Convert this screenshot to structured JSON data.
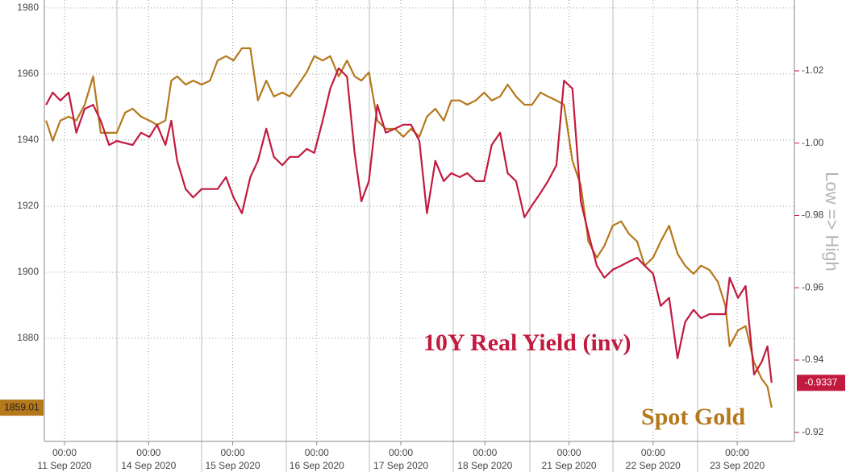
{
  "chart_data": {
    "type": "line",
    "x": [
      -0.22,
      -0.14,
      -0.05,
      0.05,
      0.14,
      0.24,
      0.34,
      0.43,
      0.53,
      0.62,
      0.72,
      0.81,
      0.91,
      1.01,
      1.1,
      1.2,
      1.27,
      1.34,
      1.44,
      1.53,
      1.63,
      1.73,
      1.82,
      1.92,
      2.01,
      2.11,
      2.21,
      2.3,
      2.4,
      2.49,
      2.59,
      2.68,
      2.78,
      2.88,
      2.97,
      3.07,
      3.16,
      3.26,
      3.36,
      3.45,
      3.53,
      3.62,
      3.72,
      3.82,
      3.93,
      4.03,
      4.12,
      4.22,
      4.31,
      4.41,
      4.51,
      4.6,
      4.7,
      4.79,
      4.89,
      4.99,
      5.08,
      5.18,
      5.27,
      5.37,
      5.47,
      5.56,
      5.66,
      5.75,
      5.85,
      5.94,
      6.04,
      6.14,
      6.23,
      6.33,
      6.42,
      6.52,
      6.62,
      6.71,
      6.81,
      6.9,
      7.0,
      7.09,
      7.19,
      7.29,
      7.38,
      7.48,
      7.57,
      7.67,
      7.77,
      7.86,
      7.91,
      8.01,
      8.1,
      8.2,
      8.29,
      8.36,
      8.41
    ],
    "series": [
      {
        "name": "Spot Gold",
        "color": "#b5781b",
        "values": [
          1945.9,
          1939.8,
          1945.9,
          1947.1,
          1945.9,
          1950.7,
          1959.3,
          1942.2,
          1942.2,
          1942.2,
          1948.3,
          1949.5,
          1947.1,
          1945.9,
          1944.6,
          1945.9,
          1958.0,
          1959.3,
          1956.8,
          1958.0,
          1956.8,
          1958.0,
          1964.1,
          1965.4,
          1964.1,
          1967.8,
          1967.8,
          1952.0,
          1958.0,
          1953.2,
          1954.4,
          1953.2,
          1956.8,
          1960.5,
          1965.4,
          1964.1,
          1965.4,
          1959.3,
          1964.1,
          1959.3,
          1958.0,
          1960.5,
          1945.9,
          1943.4,
          1943.4,
          1941.0,
          1943.4,
          1941.0,
          1947.1,
          1949.5,
          1945.9,
          1952.0,
          1952.0,
          1950.7,
          1952.0,
          1954.4,
          1952.0,
          1953.2,
          1956.8,
          1953.2,
          1950.7,
          1950.7,
          1954.4,
          1953.2,
          1952.0,
          1950.7,
          1933.7,
          1926.3,
          1909.3,
          1904.4,
          1908.0,
          1914.1,
          1915.4,
          1911.7,
          1909.3,
          1902.0,
          1904.4,
          1909.3,
          1914.1,
          1905.6,
          1902.0,
          1899.5,
          1902.0,
          1900.7,
          1897.1,
          1889.8,
          1877.6,
          1882.4,
          1883.7,
          1872.7,
          1867.8,
          1865.4,
          1859.01
        ]
      },
      {
        "name": "10Y Real Yield (inv)",
        "color": "#c21a3e",
        "axis": "y2",
        "values": [
          -1.0106,
          -1.014,
          -1.0118,
          -1.014,
          -1.0029,
          -1.0095,
          -1.0106,
          -1.0062,
          -0.9995,
          -1.0006,
          -1.0,
          -0.9995,
          -1.0029,
          -1.0017,
          -1.0051,
          -0.9995,
          -1.0062,
          -0.9951,
          -0.9873,
          -0.985,
          -0.9873,
          -0.9873,
          -0.9873,
          -0.9906,
          -0.985,
          -0.9806,
          -0.9906,
          -0.9951,
          -1.004,
          -0.9962,
          -0.9939,
          -0.9962,
          -0.9962,
          -0.9984,
          -0.9973,
          -1.0062,
          -1.0151,
          -1.0207,
          -1.0184,
          -0.9973,
          -0.9839,
          -0.9895,
          -1.0106,
          -1.0029,
          -1.004,
          -1.0051,
          -1.0051,
          -1.0006,
          -0.9806,
          -0.9951,
          -0.9895,
          -0.9917,
          -0.9906,
          -0.9917,
          -0.9895,
          -0.9895,
          -0.9995,
          -1.0029,
          -0.9917,
          -0.9895,
          -0.9795,
          -0.9828,
          -0.9862,
          -0.9895,
          -0.9939,
          -1.0173,
          -1.0151,
          -0.9839,
          -0.975,
          -0.9661,
          -0.9628,
          -0.965,
          -0.9661,
          -0.9672,
          -0.9683,
          -0.9661,
          -0.9639,
          -0.955,
          -0.9572,
          -0.9405,
          -0.9505,
          -0.9539,
          -0.9516,
          -0.9527,
          -0.9527,
          -0.9527,
          -0.9628,
          -0.9572,
          -0.9605,
          -0.936,
          -0.9394,
          -0.9438,
          -0.9337
        ]
      }
    ],
    "xlim": [
      -0.24,
      8.68
    ],
    "xticks": [
      {
        "value": 0,
        "time": "00:00",
        "label": "11 Sep 2020"
      },
      {
        "value": 1,
        "time": "00:00",
        "label": "14 Sep 2020"
      },
      {
        "value": 2,
        "time": "00:00",
        "label": "15 Sep 2020"
      },
      {
        "value": 3,
        "time": "00:00",
        "label": "16 Sep 2020"
      },
      {
        "value": 4,
        "time": "00:00",
        "label": "17 Sep 2020"
      },
      {
        "value": 5,
        "time": "00:00",
        "label": "18 Sep 2020"
      },
      {
        "value": 6,
        "time": "00:00",
        "label": "21 Sep 2020"
      },
      {
        "value": 7,
        "time": "00:00",
        "label": "22 Sep 2020"
      },
      {
        "value": 8,
        "time": "00:00",
        "label": "23 Sep 2020"
      }
    ],
    "ylim": [
      1848.8,
      1982.4
    ],
    "yticks": [
      1880,
      1900,
      1920,
      1940,
      1960,
      1980
    ],
    "y2lim": [
      -0.9175,
      -1.0396
    ],
    "y2ticks": [
      -1.02,
      {
        "value": -1.0,
        "label": "-1.00"
      },
      -0.98,
      -0.96,
      -0.94,
      -0.92
    ],
    "y2label": "Low => High",
    "grid": true
  }
}
